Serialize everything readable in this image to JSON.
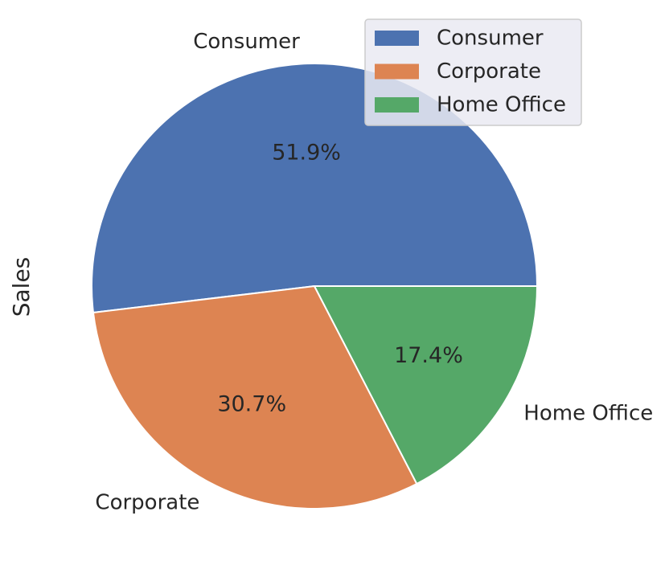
{
  "chart_data": {
    "type": "pie",
    "ylabel": "Sales",
    "categories": [
      "Consumer",
      "Corporate",
      "Home Office"
    ],
    "values": [
      51.9,
      30.7,
      17.4
    ],
    "percent_labels": [
      "51.9%",
      "30.7%",
      "17.4%"
    ],
    "colors": [
      "#4c72b0",
      "#dd8452",
      "#55a868"
    ],
    "legend": {
      "placement": "top-right",
      "entries": [
        "Consumer",
        "Corporate",
        "Home Office"
      ]
    },
    "start_angle": 0,
    "direction": "counterclockwise"
  }
}
